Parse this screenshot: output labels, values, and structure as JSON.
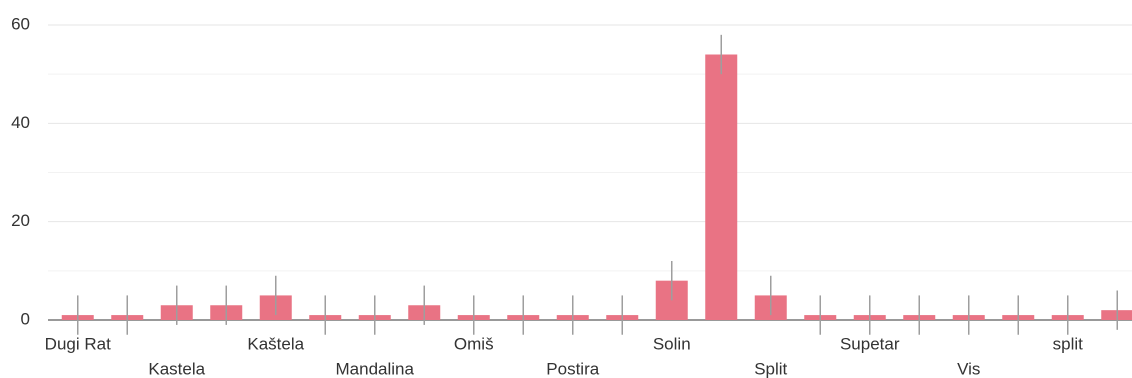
{
  "chart_data": {
    "type": "bar",
    "categories": [
      "Dugi Rat",
      null,
      "Kastela",
      null,
      "Kaštela",
      null,
      "Mandalina",
      null,
      "Omiš",
      null,
      "Postira",
      null,
      "Solin",
      null,
      "Split",
      null,
      "Supetar",
      null,
      "Vis",
      null,
      "split",
      null
    ],
    "values": [
      1,
      1,
      3,
      3,
      5,
      1,
      1,
      3,
      1,
      1,
      1,
      1,
      8,
      54,
      5,
      1,
      1,
      1,
      1,
      1,
      1,
      2
    ],
    "errors": [
      4,
      4,
      4,
      4,
      4,
      4,
      4,
      4,
      4,
      4,
      4,
      4,
      4,
      4,
      4,
      4,
      4,
      4,
      4,
      4,
      4,
      4
    ],
    "color": "#e97384",
    "error_color": "#9e9e9e",
    "ylim": [
      0,
      60
    ],
    "yticks": [
      0,
      20,
      40,
      60
    ],
    "minor_yticks": [
      10,
      30,
      50
    ],
    "grid": true
  }
}
